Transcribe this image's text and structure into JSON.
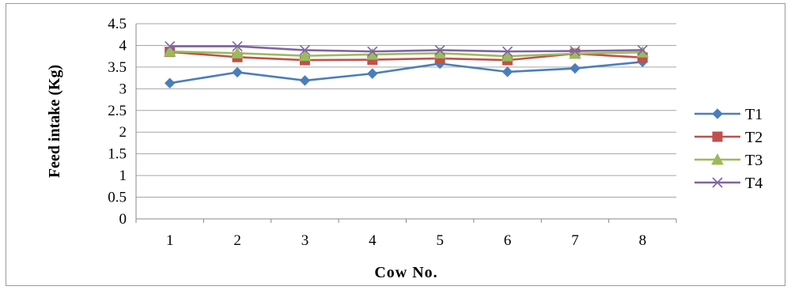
{
  "chart_data": {
    "type": "line",
    "title": "",
    "xlabel": "Cow No.",
    "ylabel": "Feed intake (Kg)",
    "categories": [
      "1",
      "2",
      "3",
      "4",
      "5",
      "6",
      "7",
      "8"
    ],
    "ylim": [
      0,
      4.5
    ],
    "yticks": [
      "0",
      "0.5",
      "1",
      "1.5",
      "2",
      "2.5",
      "3",
      "3.5",
      "4",
      "4.5"
    ],
    "grid": true,
    "legend_position": "right",
    "series": [
      {
        "name": "T1",
        "color": "#4a7ebb",
        "marker": "diamond",
        "values": [
          3.13,
          3.38,
          3.19,
          3.35,
          3.58,
          3.39,
          3.47,
          3.62
        ]
      },
      {
        "name": "T2",
        "color": "#c0504d",
        "marker": "square",
        "values": [
          3.85,
          3.73,
          3.66,
          3.67,
          3.7,
          3.66,
          3.81,
          3.72
        ]
      },
      {
        "name": "T3",
        "color": "#9bbb59",
        "marker": "triangle",
        "values": [
          3.86,
          3.82,
          3.76,
          3.79,
          3.82,
          3.75,
          3.81,
          3.84
        ]
      },
      {
        "name": "T4",
        "color": "#8064a2",
        "marker": "x",
        "values": [
          3.98,
          3.98,
          3.89,
          3.86,
          3.89,
          3.86,
          3.87,
          3.89
        ]
      }
    ]
  }
}
